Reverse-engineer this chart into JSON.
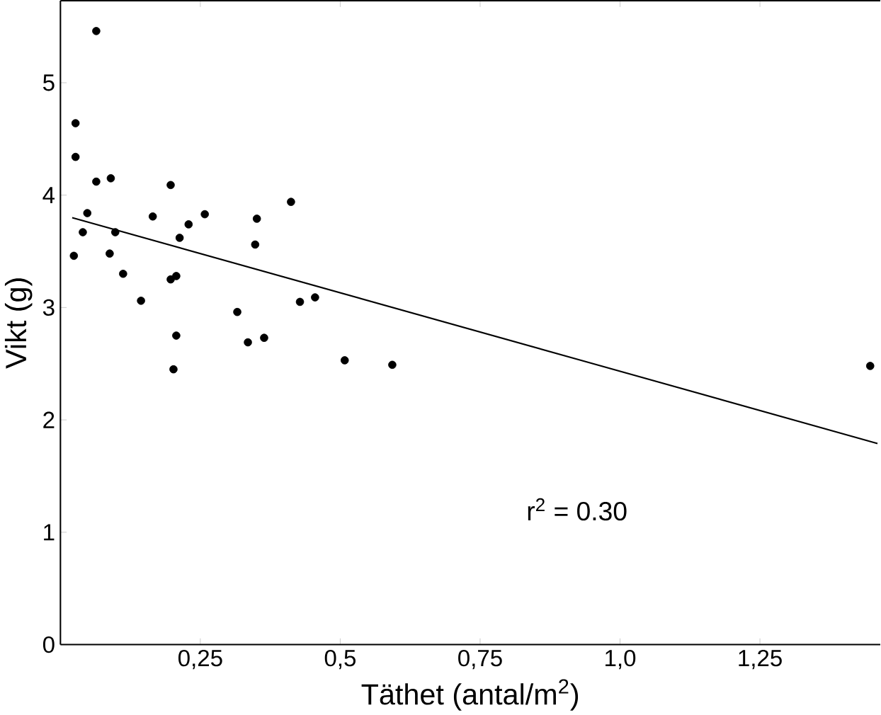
{
  "chart_data": {
    "type": "scatter",
    "xlabel": "Täthet (antal/m$^{2}$)",
    "ylabel": "Vikt (g)",
    "xlim": [
      0,
      1.465
    ],
    "ylim": [
      0,
      5.73
    ],
    "xticks": [
      {
        "value": 0.25,
        "label": "0,25"
      },
      {
        "value": 0.5,
        "label": "0,5"
      },
      {
        "value": 0.75,
        "label": "0,75"
      },
      {
        "value": 1.0,
        "label": "1,0"
      },
      {
        "value": 1.25,
        "label": "1,25"
      }
    ],
    "yticks": [
      0,
      1,
      2,
      3,
      4,
      5
    ],
    "grid": false,
    "annotations": [
      "r$^{2}$ = 0.30"
    ],
    "series": [
      {
        "marker": "circle",
        "color": "#000000",
        "x": [
          0.064,
          0.027,
          0.027,
          0.064,
          0.09,
          0.197,
          0.412,
          0.048,
          0.04,
          0.098,
          0.024,
          0.088,
          0.165,
          0.258,
          0.229,
          0.213,
          0.351,
          0.348,
          0.112,
          0.197,
          0.207,
          0.144,
          0.316,
          0.428,
          0.455,
          0.207,
          0.335,
          0.364,
          0.202,
          0.508,
          0.593,
          1.447
        ],
        "values": [
          5.46,
          4.64,
          4.34,
          4.12,
          4.15,
          4.09,
          3.94,
          3.84,
          3.67,
          3.67,
          3.46,
          3.48,
          3.81,
          3.83,
          3.74,
          3.62,
          3.79,
          3.56,
          3.3,
          3.25,
          3.28,
          3.06,
          2.96,
          3.05,
          3.09,
          2.75,
          2.69,
          2.73,
          2.45,
          2.53,
          2.49,
          2.48
        ]
      },
      {
        "type": "line",
        "color": "#000000",
        "line_style": "solid",
        "x": [
          0.021,
          1.46
        ],
        "values": [
          3.8,
          1.79
        ]
      }
    ]
  }
}
